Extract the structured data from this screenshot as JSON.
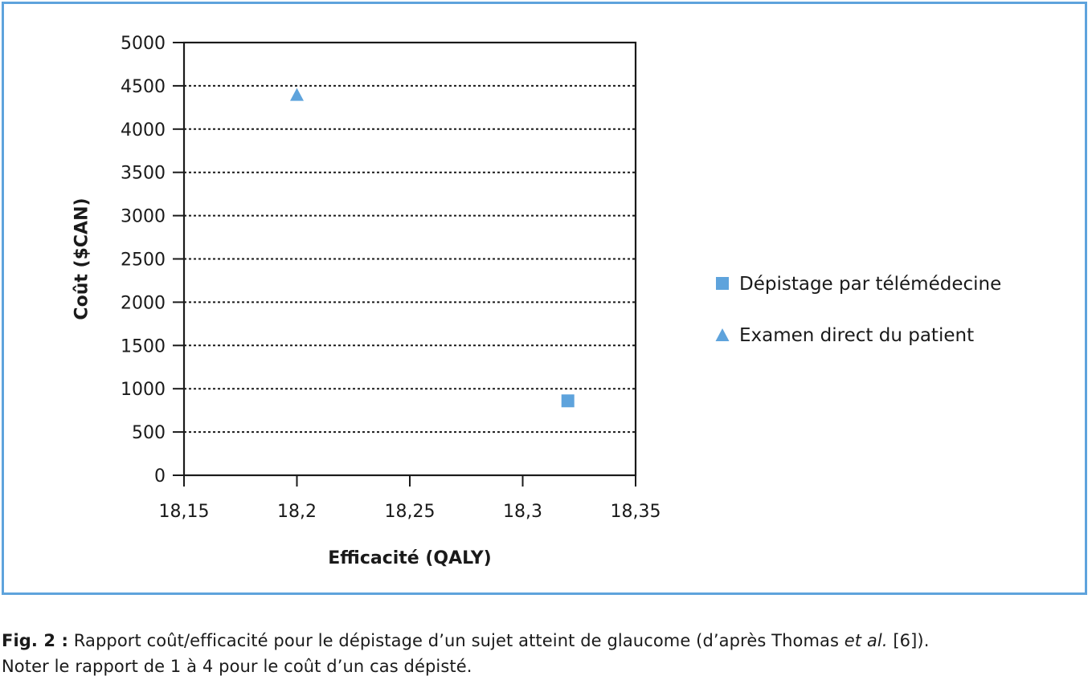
{
  "chart_data": {
    "type": "scatter",
    "xlabel": "Efficacité (QALY)",
    "ylabel": "Coût ($CAN)",
    "xlim": [
      18.15,
      18.35
    ],
    "ylim": [
      0,
      5000
    ],
    "x_ticks": [
      18.15,
      18.2,
      18.25,
      18.3,
      18.35
    ],
    "x_tick_labels": [
      "18,15",
      "18,2",
      "18,25",
      "18,3",
      "18,35"
    ],
    "y_ticks": [
      0,
      500,
      1000,
      1500,
      2000,
      2500,
      3000,
      3500,
      4000,
      4500,
      5000
    ],
    "y_tick_labels": [
      "0",
      "500",
      "1000",
      "1500",
      "2000",
      "2500",
      "3000",
      "3500",
      "4000",
      "4500",
      "5000"
    ],
    "grid": "horizontal-dotted",
    "legend_position": "right",
    "series": [
      {
        "name": "Dépistage par télémédecine",
        "marker": "square",
        "color": "#5ea3dc",
        "points": [
          {
            "x": 18.32,
            "y": 860
          }
        ]
      },
      {
        "name": "Examen direct du patient",
        "marker": "triangle",
        "color": "#5ea3dc",
        "points": [
          {
            "x": 18.2,
            "y": 4400
          }
        ]
      }
    ]
  },
  "caption": {
    "label": "Fig. 2 :",
    "text_before_italic": " Rapport coût/efficacité pour le dépistage d’un sujet atteint de glaucome (d’après Thomas ",
    "italic": "et al.",
    "text_after_italic": " [6]).",
    "line2": "Noter le rapport de 1 à 4 pour le coût d’un cas dépisté."
  }
}
